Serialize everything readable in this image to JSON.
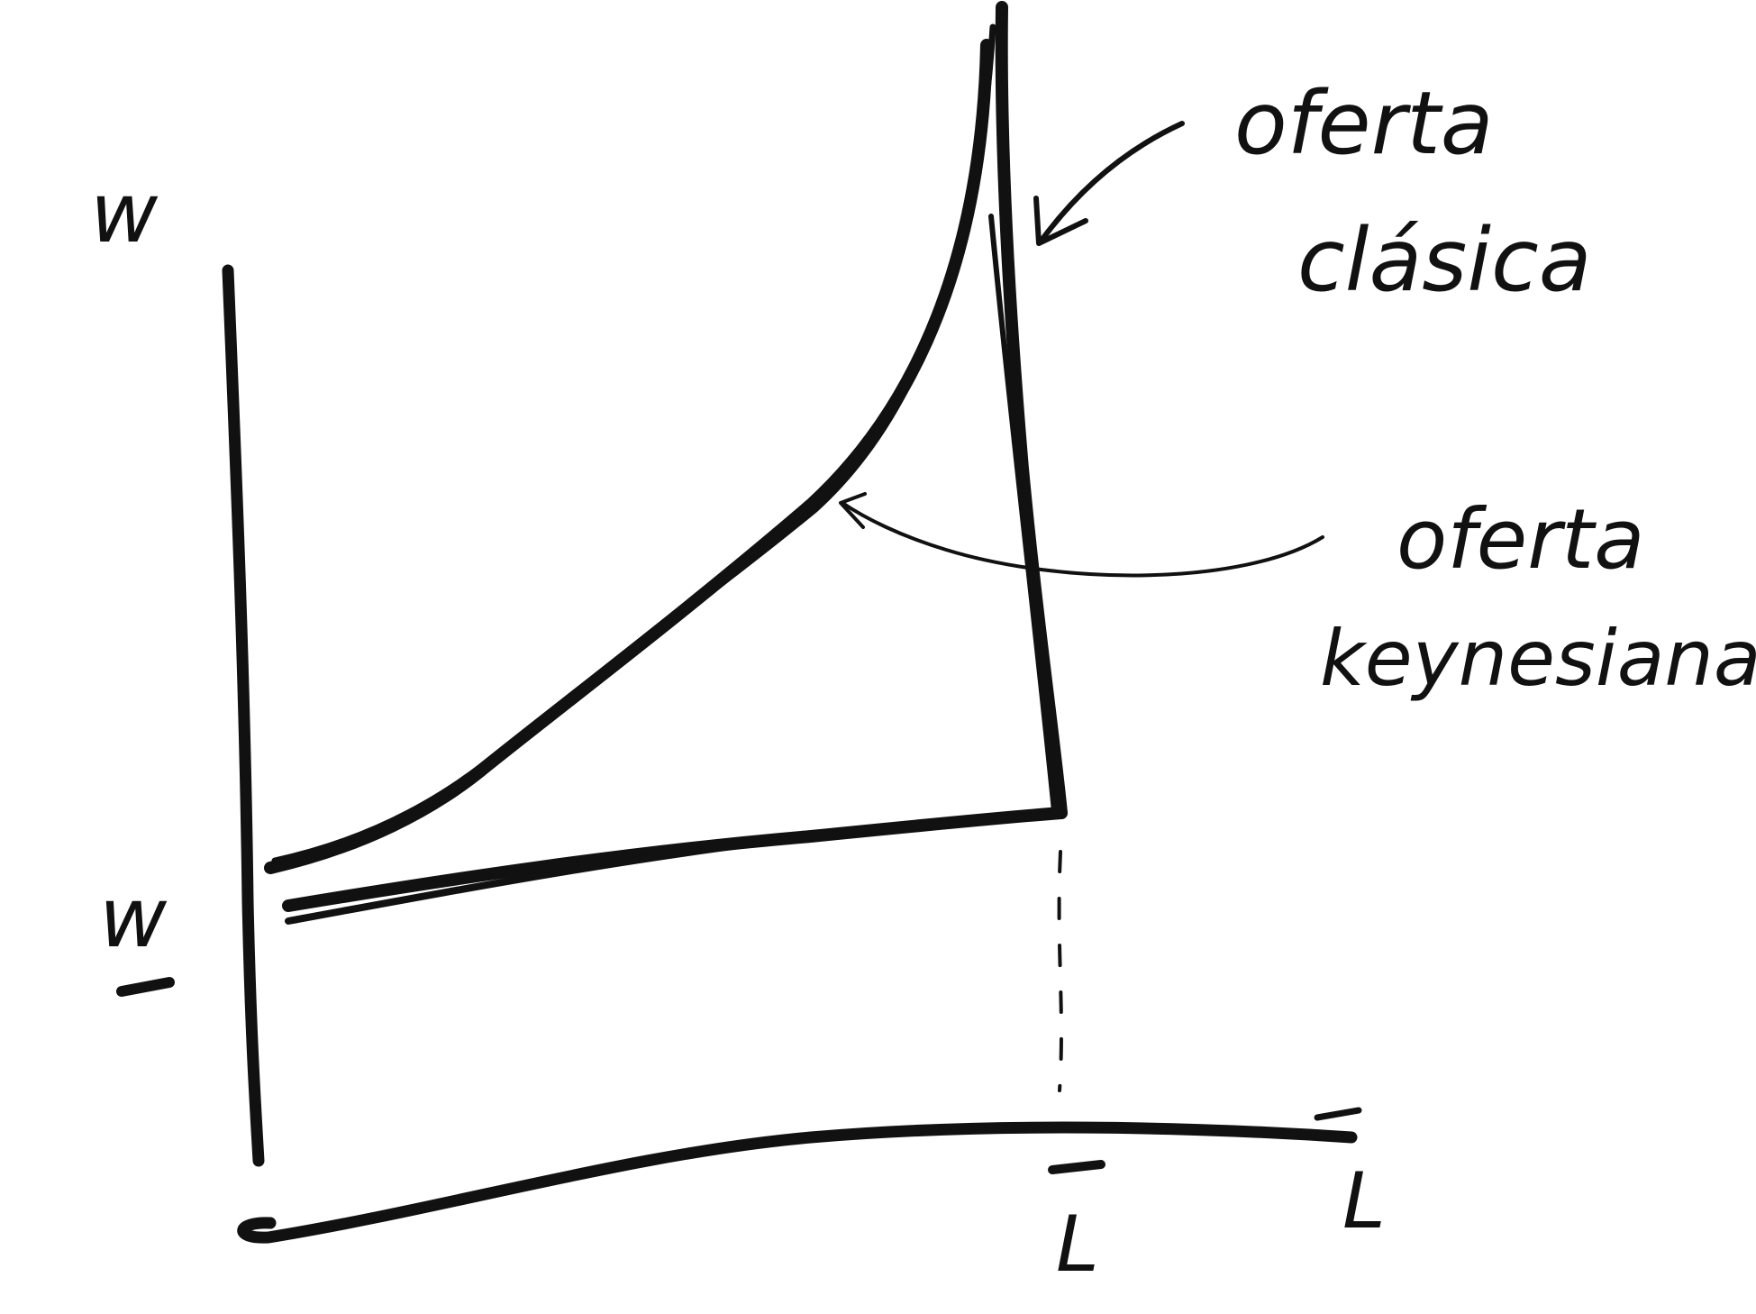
{
  "labels": {
    "y_axis": "w",
    "min_wage": "w",
    "x_full": "L",
    "x_axis": "L",
    "classic_supply_1": "oferta",
    "classic_supply_2": "clásica",
    "keynes_supply_1": "oferta",
    "keynes_supply_2": "keynesiana"
  },
  "colors": {
    "ink": "#111111",
    "background": "#ffffff"
  }
}
